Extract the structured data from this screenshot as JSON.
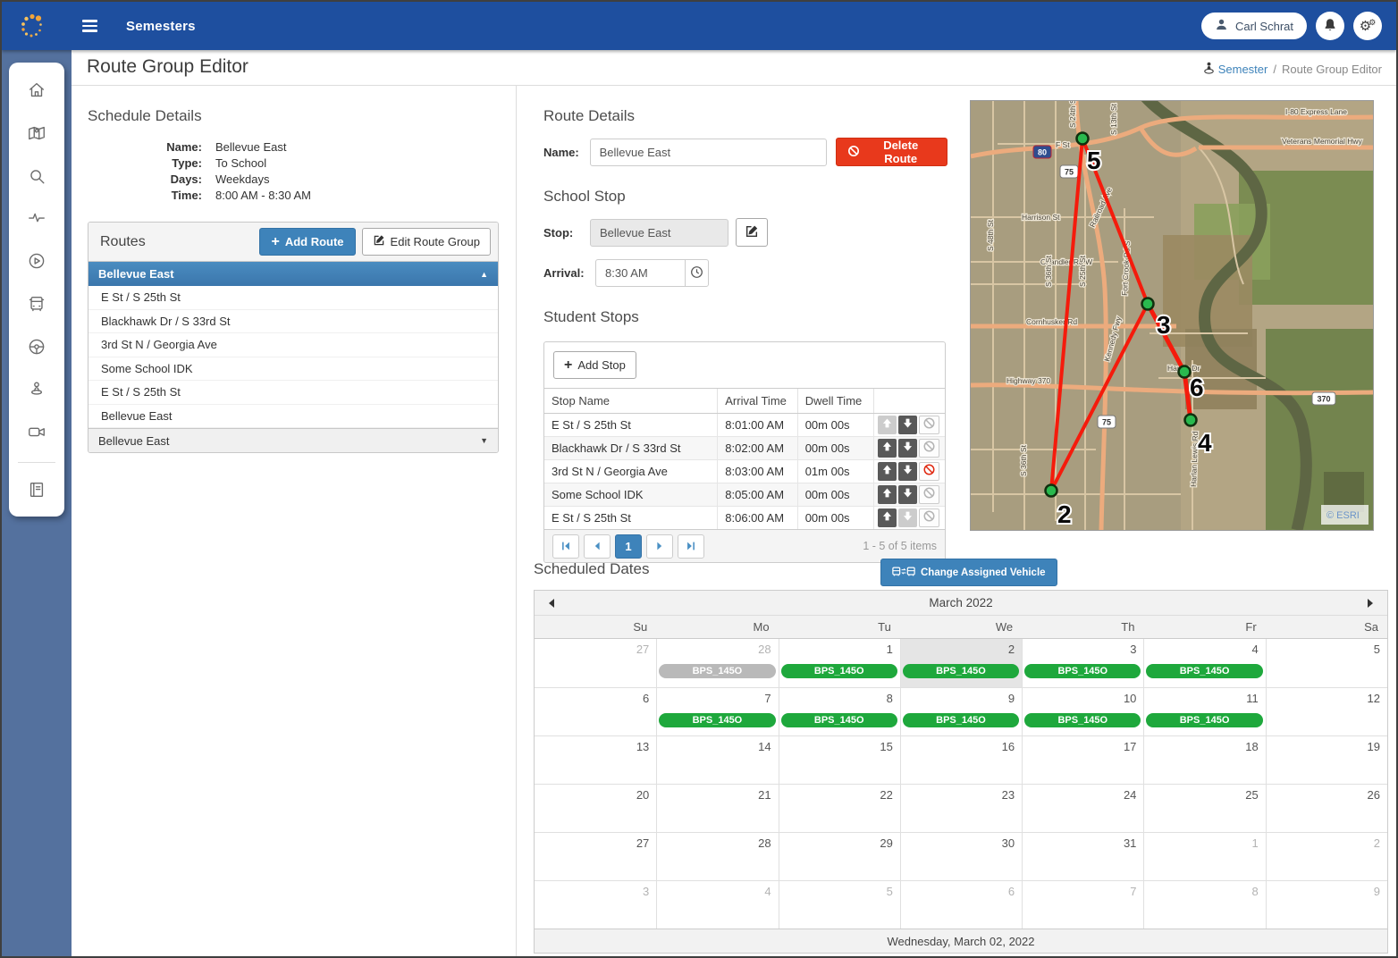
{
  "navbar": {
    "title": "Semesters",
    "user": "Carl Schrat"
  },
  "page": {
    "title": "Route Group Editor"
  },
  "breadcrumb": {
    "link": "Semester",
    "sep": "/",
    "current": "Route Group Editor"
  },
  "schedule_details": {
    "heading": "Schedule Details",
    "fields": [
      {
        "label": "Name:",
        "value": "Bellevue East"
      },
      {
        "label": "Type:",
        "value": "To School"
      },
      {
        "label": "Days:",
        "value": "Weekdays"
      },
      {
        "label": "Time:",
        "value": "8:00 AM - 8:30 AM"
      }
    ]
  },
  "routes": {
    "heading": "Routes",
    "add_label": "Add Route",
    "edit_label": "Edit Route Group",
    "selected": "Bellevue East",
    "stops": [
      "E St / S 25th St",
      "Blackhawk Dr / S 33rd St",
      "3rd St N / Georgia Ave",
      "Some School IDK",
      "E St / S 25th St",
      "Bellevue East"
    ],
    "collapsed": "Bellevue East"
  },
  "route_details": {
    "heading": "Route Details",
    "name_label": "Name:",
    "name_value": "Bellevue East",
    "delete_label": "Delete Route"
  },
  "school_stop": {
    "heading": "School Stop",
    "stop_label": "Stop:",
    "stop_value": "Bellevue East",
    "arrival_label": "Arrival:",
    "arrival_value": "8:30 AM"
  },
  "student_stops": {
    "heading": "Student Stops",
    "add_label": "Add Stop",
    "columns": [
      "Stop Name",
      "Arrival Time",
      "Dwell Time",
      ""
    ],
    "rows": [
      {
        "name": "E St / S 25th St",
        "arrival": "8:01:00 AM",
        "dwell": "00m 00s",
        "up_enabled": false,
        "down_enabled": true,
        "ban": "gray"
      },
      {
        "name": "Blackhawk Dr / S 33rd St",
        "arrival": "8:02:00 AM",
        "dwell": "00m 00s",
        "up_enabled": true,
        "down_enabled": true,
        "ban": "gray"
      },
      {
        "name": "3rd St N / Georgia Ave",
        "arrival": "8:03:00 AM",
        "dwell": "01m 00s",
        "up_enabled": true,
        "down_enabled": true,
        "ban": "red"
      },
      {
        "name": "Some School IDK",
        "arrival": "8:05:00 AM",
        "dwell": "00m 00s",
        "up_enabled": true,
        "down_enabled": true,
        "ban": "gray"
      },
      {
        "name": "E St / S 25th St",
        "arrival": "8:06:00 AM",
        "dwell": "00m 00s",
        "up_enabled": true,
        "down_enabled": false,
        "ban": "gray"
      }
    ],
    "page": "1",
    "summary": "1 - 5 of 5 items"
  },
  "scheduled_dates": {
    "heading": "Scheduled Dates",
    "change_vehicle_label": "Change Assigned Vehicle",
    "month": "March 2022",
    "dows": [
      "Su",
      "Mo",
      "Tu",
      "We",
      "Th",
      "Fr",
      "Sa"
    ],
    "badge_label": "BPS_145O",
    "weeks": [
      [
        {
          "d": "27",
          "muted": true
        },
        {
          "d": "28",
          "muted": true,
          "badge": "gray"
        },
        {
          "d": "1",
          "badge": "green"
        },
        {
          "d": "2",
          "badge": "green",
          "selected": true
        },
        {
          "d": "3",
          "badge": "green"
        },
        {
          "d": "4",
          "badge": "green"
        },
        {
          "d": "5"
        }
      ],
      [
        {
          "d": "6"
        },
        {
          "d": "7",
          "badge": "green"
        },
        {
          "d": "8",
          "badge": "green"
        },
        {
          "d": "9",
          "badge": "green"
        },
        {
          "d": "10",
          "badge": "green"
        },
        {
          "d": "11",
          "badge": "green"
        },
        {
          "d": "12"
        }
      ],
      [
        {
          "d": "13"
        },
        {
          "d": "14"
        },
        {
          "d": "15"
        },
        {
          "d": "16"
        },
        {
          "d": "17"
        },
        {
          "d": "18"
        },
        {
          "d": "19"
        }
      ],
      [
        {
          "d": "20"
        },
        {
          "d": "21"
        },
        {
          "d": "22"
        },
        {
          "d": "23"
        },
        {
          "d": "24"
        },
        {
          "d": "25"
        },
        {
          "d": "26"
        }
      ],
      [
        {
          "d": "27"
        },
        {
          "d": "28"
        },
        {
          "d": "29"
        },
        {
          "d": "30"
        },
        {
          "d": "31"
        },
        {
          "d": "1",
          "muted": true
        },
        {
          "d": "2",
          "muted": true
        }
      ],
      [
        {
          "d": "3",
          "muted": true
        },
        {
          "d": "4",
          "muted": true
        },
        {
          "d": "5",
          "muted": true
        },
        {
          "d": "6",
          "muted": true
        },
        {
          "d": "7",
          "muted": true
        },
        {
          "d": "8",
          "muted": true
        },
        {
          "d": "9",
          "muted": true
        }
      ]
    ],
    "footer": "Wednesday, March 02, 2022"
  },
  "map": {
    "esri": "© ESRI",
    "markers": [
      "2",
      "3",
      "4",
      "5",
      "6"
    ],
    "labels": [
      "I-80 Express Lane",
      "Veterans Memorial Hwy",
      "F St",
      "S 24th St",
      "S 13th St",
      "Harrison St",
      "Chandler Rd W",
      "S 48th St",
      "S 36th St",
      "S 25th St",
      "Railroad Ave",
      "Fort Crook Rd S",
      "Cornhusker Rd",
      "Highway 370",
      "Kennedy Fwy",
      "Harlan Dr",
      "Harlan Lewis Rd",
      "S 36th St"
    ],
    "shields": [
      "75",
      "75",
      "370",
      "80"
    ]
  },
  "colors": {
    "navbar": "#1e4f9f",
    "accent": "#3e83ba",
    "danger": "#e8391c",
    "badge_green": "#1ea83c",
    "badge_gray": "#b9b9b9",
    "route_line": "#f51b0c",
    "marker_green": "#29b94e"
  }
}
